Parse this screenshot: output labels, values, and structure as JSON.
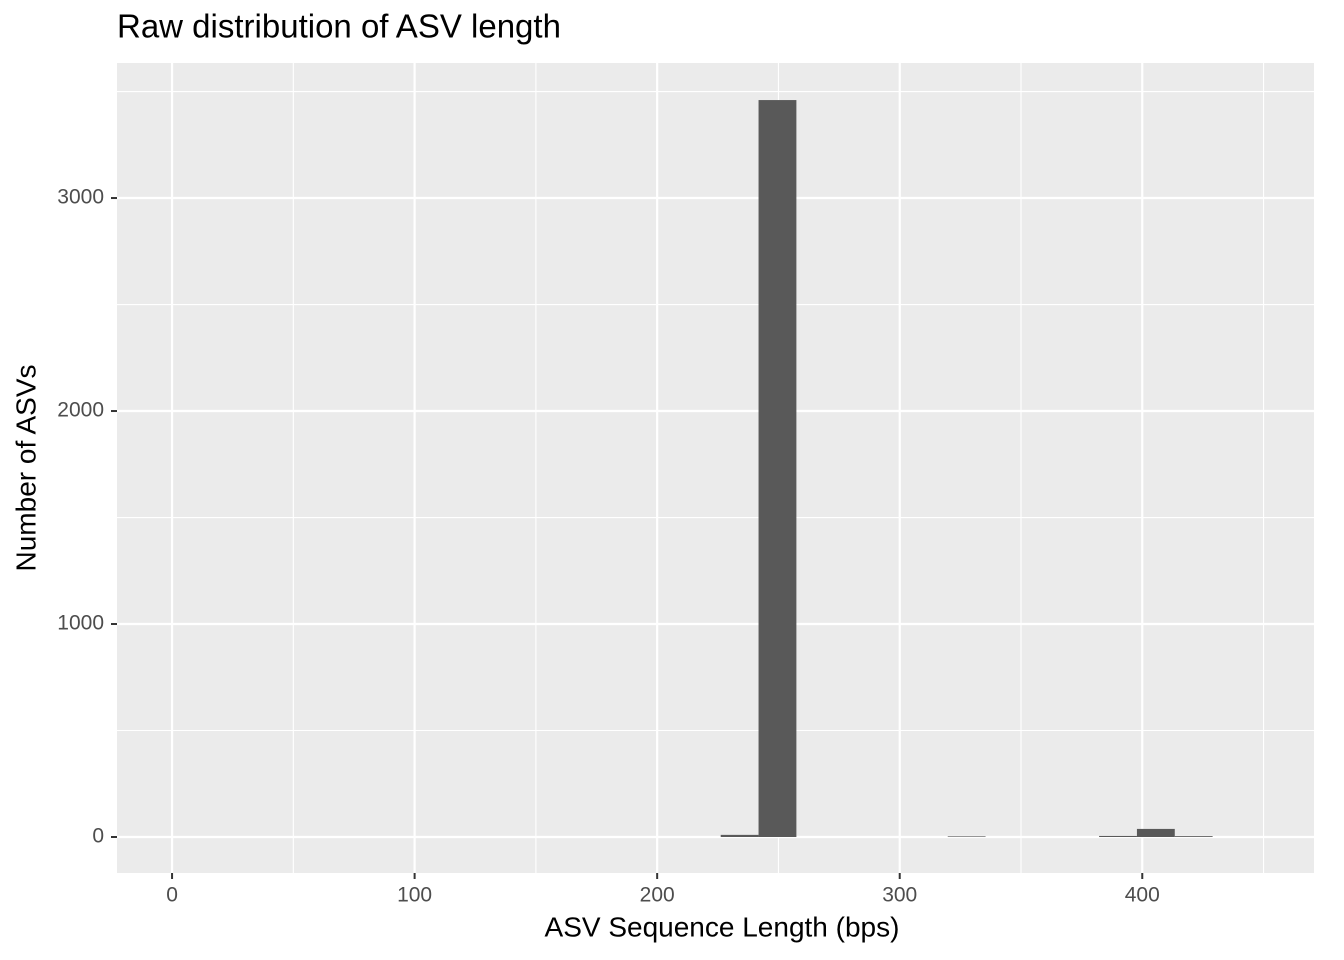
{
  "chart_data": {
    "type": "histogram",
    "title": "Raw distribution of ASV length",
    "x_label": "ASV Sequence Length (bps)",
    "y_label": "Number of ASVs",
    "bins": [
      -7.8,
      7.8,
      23.4,
      39,
      54.6,
      70.2,
      85.8,
      101.4,
      117,
      132.6,
      148.2,
      163.8,
      179.4,
      195,
      210.6,
      226.2,
      241.8,
      257.4,
      273,
      288.6,
      304.2,
      319.8,
      335.4,
      351,
      366.6,
      382.2,
      397.8,
      413.4,
      429,
      444.6,
      460.2
    ],
    "values": [
      0,
      0,
      0,
      0,
      0,
      0,
      0,
      0,
      0,
      0,
      0,
      0,
      0,
      0,
      0,
      10,
      3460,
      0,
      0,
      0,
      0,
      3,
      0,
      0,
      0,
      5,
      38,
      4,
      0,
      0
    ],
    "color": "#595959",
    "xlim": [
      -22.7,
      470.8
    ],
    "ylim": [
      -169,
      3634
    ],
    "xticks": [
      0,
      100,
      200,
      300,
      400
    ],
    "yticks": [
      0,
      1000,
      2000,
      3000
    ],
    "x_minor_grid": [
      50,
      150,
      250,
      350,
      450
    ],
    "y_minor_grid": [
      500,
      1500,
      2500,
      3500
    ],
    "grid": true
  }
}
